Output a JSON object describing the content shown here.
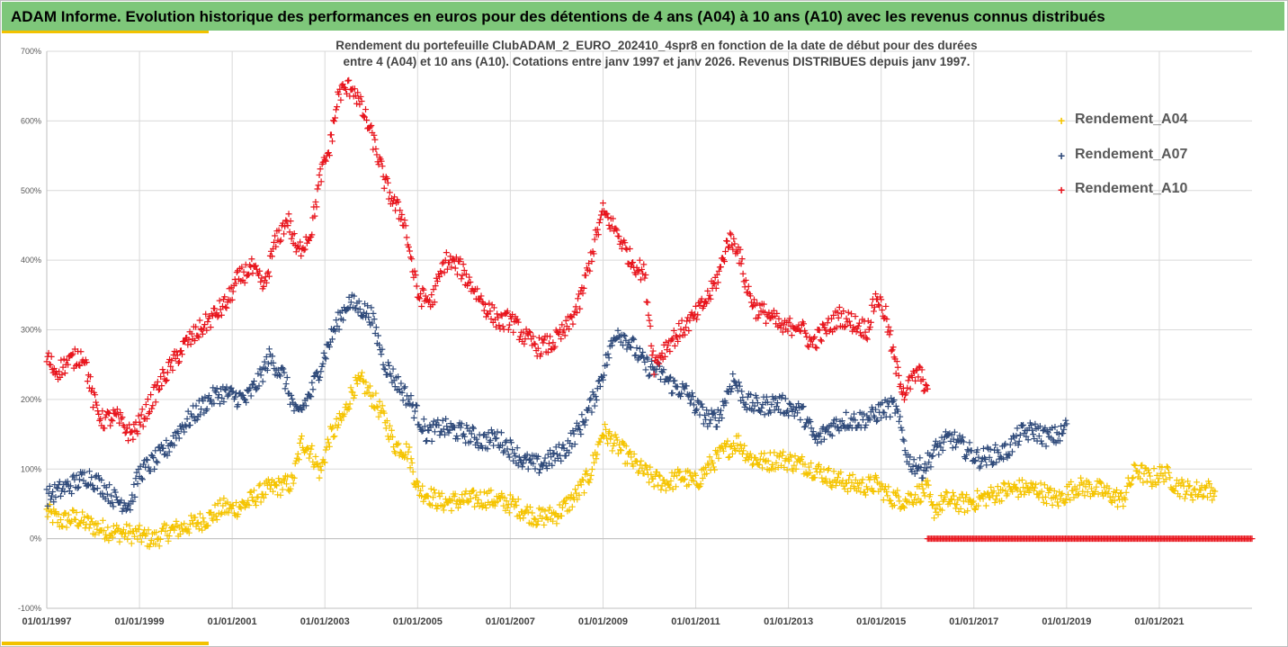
{
  "banner": {
    "title": "ADAM Informe. Evolution historique des performances en euros pour des détentions de 4 ans (A04) à 10 ans (A10) avec les revenus connus distribués"
  },
  "colors": {
    "banner": "#7ec77a",
    "accent": "#f2c200",
    "A04": "#f5c400",
    "A07": "#2f4a7a",
    "A10": "#e8141c"
  },
  "chart_data": {
    "type": "scatter",
    "title_lines": [
      "Rendement du portefeuille ClubADAM_2_EURO_202410_4spr8  en fonction de la date de début pour des durées",
      "entre 4 (A04) et 10 ans (A10). Cotations entre janv 1997 et janv 2026. Revenus DISTRIBUES depuis janv 1997."
    ],
    "x_label": "",
    "y_label": "",
    "x_range": [
      "01/01/1997",
      "01/01/2023"
    ],
    "y_range": [
      -100,
      700
    ],
    "y_ticks": [
      "-100%",
      "0%",
      "100%",
      "200%",
      "300%",
      "400%",
      "500%",
      "600%",
      "700%"
    ],
    "x_ticks": [
      "01/01/1997",
      "01/01/1999",
      "01/01/2001",
      "01/01/2003",
      "01/01/2005",
      "01/01/2007",
      "01/01/2009",
      "01/01/2011",
      "01/01/2013",
      "01/01/2015",
      "01/01/2017",
      "01/01/2019",
      "01/01/2021"
    ],
    "grid": true,
    "legend_position": "right",
    "marker": "+",
    "series": [
      {
        "name": "Rendement_A04",
        "x": [
          1997.0,
          1997.3,
          1997.6,
          1998.0,
          1998.4,
          1998.7,
          1999.0,
          1999.3,
          1999.6,
          1999.9,
          2000.2,
          2000.5,
          2000.8,
          2001.0,
          2001.3,
          2001.6,
          2001.8,
          2002.0,
          2002.3,
          2002.5,
          2002.7,
          2002.9,
          2003.1,
          2003.4,
          2003.6,
          2003.8,
          2004.1,
          2004.3,
          2004.5,
          2004.8,
          2005.0,
          2005.5,
          2006.0,
          2006.5,
          2007.0,
          2007.3,
          2007.6,
          2008.0,
          2008.4,
          2008.7,
          2009.0,
          2009.2,
          2009.5,
          2009.8,
          2010.1,
          2010.4,
          2010.7,
          2011.0,
          2011.3,
          2011.6,
          2011.9,
          2012.2,
          2012.5,
          2012.8,
          2013.1,
          2013.4,
          2013.7,
          2014.0,
          2014.3,
          2014.6,
          2014.9,
          2015.2,
          2015.5,
          2015.8,
          2016.0,
          2016.1,
          2016.4,
          2016.8,
          2017.2,
          2017.6,
          2018.0,
          2018.4,
          2018.8,
          2019.2,
          2019.6,
          2020.0,
          2020.2,
          2020.5,
          2020.8,
          2021.1,
          2021.4,
          2021.7,
          2022.0,
          2022.2
        ],
        "y": [
          38,
          25,
          30,
          18,
          10,
          8,
          5,
          -2,
          10,
          15,
          22,
          30,
          45,
          42,
          50,
          65,
          72,
          75,
          80,
          140,
          125,
          95,
          145,
          175,
          215,
          225,
          195,
          170,
          135,
          125,
          72,
          52,
          55,
          58,
          50,
          40,
          30,
          35,
          60,
          90,
          155,
          140,
          120,
          100,
          85,
          80,
          90,
          80,
          105,
          125,
          140,
          115,
          110,
          115,
          110,
          105,
          95,
          85,
          80,
          75,
          78,
          60,
          55,
          65,
          70,
          40,
          55,
          50,
          58,
          68,
          72,
          70,
          55,
          75,
          72,
          62,
          55,
          100,
          85,
          95,
          75,
          68,
          72,
          68
        ]
      },
      {
        "name": "Rendement_A07",
        "x": [
          1997.0,
          1997.3,
          1997.6,
          1997.9,
          1998.2,
          1998.5,
          1998.8,
          1999.0,
          1999.3,
          1999.6,
          1999.9,
          2000.2,
          2000.5,
          2000.8,
          2001.0,
          2001.3,
          2001.6,
          2001.8,
          2002.1,
          2002.4,
          2002.7,
          2003.0,
          2003.2,
          2003.5,
          2003.8,
          2004.0,
          2004.3,
          2004.6,
          2004.9,
          2005.2,
          2005.5,
          2005.8,
          2006.1,
          2006.4,
          2006.7,
          2007.0,
          2007.3,
          2007.6,
          2007.9,
          2008.2,
          2008.5,
          2008.8,
          2009.0,
          2009.3,
          2009.6,
          2009.9,
          2010.2,
          2010.5,
          2010.8,
          2011.0,
          2011.3,
          2011.5,
          2011.8,
          2012.1,
          2012.4,
          2012.7,
          2013.0,
          2013.3,
          2013.6,
          2013.9,
          2014.2,
          2014.5,
          2014.8,
          2015.0,
          2015.3,
          2015.6,
          2015.9,
          2016.2,
          2016.5,
          2016.8,
          2017.1,
          2017.4,
          2017.7,
          2018.0,
          2018.3,
          2018.6,
          2018.9,
          2019.0
        ],
        "y": [
          60,
          70,
          80,
          90,
          75,
          55,
          50,
          95,
          110,
          130,
          160,
          180,
          200,
          210,
          205,
          200,
          230,
          260,
          235,
          175,
          210,
          265,
          300,
          340,
          330,
          320,
          250,
          220,
          190,
          150,
          160,
          155,
          150,
          140,
          145,
          130,
          110,
          105,
          115,
          130,
          160,
          200,
          240,
          300,
          280,
          250,
          240,
          220,
          210,
          190,
          170,
          175,
          230,
          195,
          190,
          195,
          190,
          180,
          140,
          160,
          170,
          170,
          175,
          185,
          190,
          110,
          100,
          130,
          145,
          130,
          115,
          120,
          125,
          150,
          155,
          145,
          150,
          165
        ]
      },
      {
        "name": "Rendement_A10",
        "x": [
          1997.0,
          1997.2,
          1997.5,
          1997.8,
          1998.0,
          1998.2,
          1998.5,
          1998.8,
          1999.0,
          1999.2,
          1999.5,
          1999.8,
          2000.0,
          2000.3,
          2000.6,
          2000.9,
          2001.1,
          2001.4,
          2001.7,
          2001.9,
          2002.2,
          2002.4,
          2002.7,
          2002.9,
          2003.1,
          2003.3,
          2003.6,
          2003.9,
          2004.1,
          2004.3,
          2004.5,
          2004.7,
          2005.0,
          2005.3,
          2005.6,
          2005.9,
          2006.2,
          2006.5,
          2006.8,
          2007.0,
          2007.3,
          2007.6,
          2007.9,
          2008.2,
          2008.5,
          2008.8,
          2009.0,
          2009.3,
          2009.6,
          2009.9,
          2010.1,
          2010.4,
          2010.7,
          2011.0,
          2011.3,
          2011.5,
          2011.7,
          2011.9,
          2012.1,
          2012.3,
          2012.6,
          2012.9,
          2013.2,
          2013.5,
          2013.8,
          2014.1,
          2014.4,
          2014.7,
          2014.9,
          2015.1,
          2015.3,
          2015.5,
          2015.8,
          2016.0
        ],
        "y": [
          260,
          240,
          255,
          265,
          200,
          170,
          175,
          150,
          165,
          190,
          230,
          260,
          280,
          300,
          320,
          340,
          370,
          390,
          360,
          420,
          460,
          410,
          440,
          520,
          560,
          640,
          650,
          600,
          560,
          510,
          480,
          460,
          350,
          340,
          400,
          390,
          360,
          330,
          310,
          315,
          290,
          275,
          280,
          300,
          340,
          420,
          470,
          440,
          400,
          380,
          250,
          280,
          300,
          320,
          350,
          380,
          430,
          420,
          360,
          330,
          320,
          300,
          310,
          280,
          300,
          320,
          310,
          300,
          350,
          320,
          250,
          210,
          240,
          215
        ]
      },
      {
        "name": "",
        "x_start": 2016.0,
        "x_end": 2023.0,
        "y": 0
      }
    ]
  }
}
